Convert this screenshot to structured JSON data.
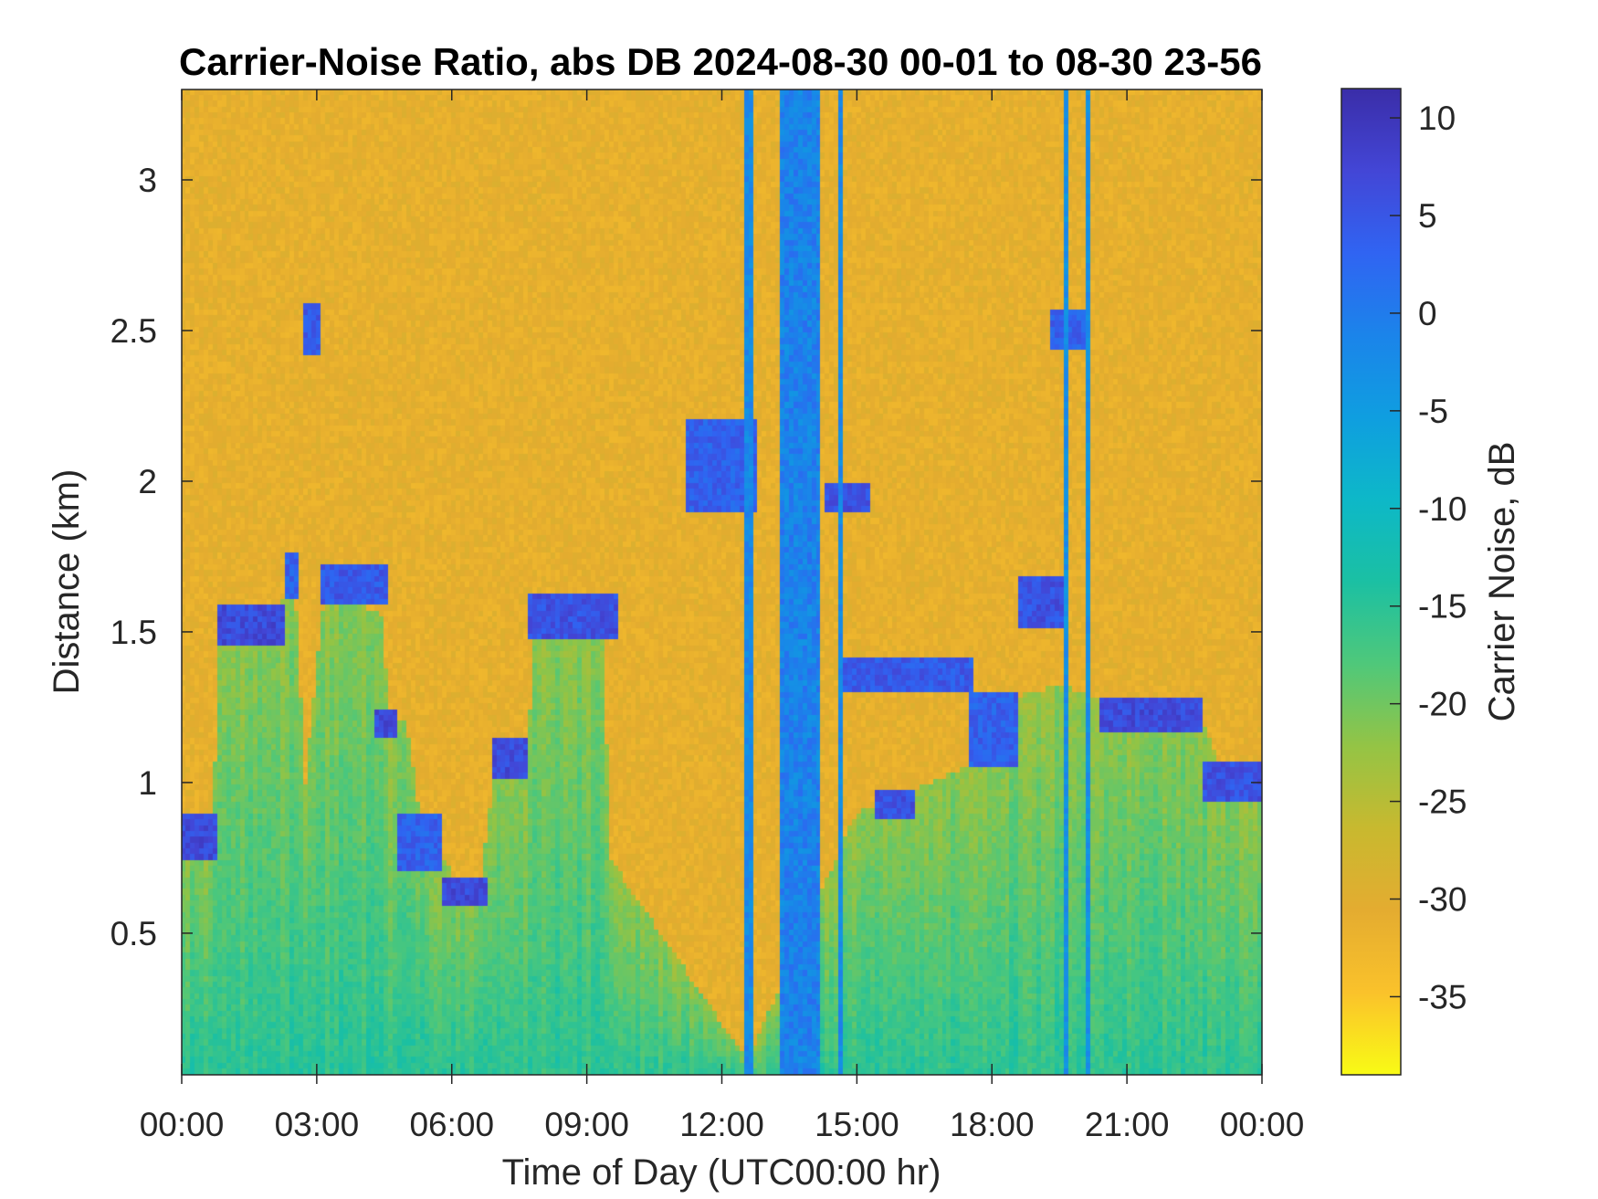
{
  "chart_data": {
    "type": "heatmap",
    "title": "Carrier-Noise Ratio, abs DB 2024-08-30 00-01 to 08-30 23-56",
    "xlabel": "Time of Day (UTC00:00 hr)",
    "ylabel": "Distance (km)",
    "x_unit": "hours",
    "xlim": [
      0,
      24
    ],
    "ylim": [
      0.03,
      3.3
    ],
    "x_ticks": [
      0,
      3,
      6,
      9,
      12,
      15,
      18,
      21,
      24
    ],
    "x_tick_labels": [
      "00:00",
      "03:00",
      "06:00",
      "09:00",
      "12:00",
      "15:00",
      "18:00",
      "21:00",
      "00:00"
    ],
    "y_ticks": [
      0.5,
      1,
      1.5,
      2,
      2.5,
      3
    ],
    "y_tick_labels": [
      "0.5",
      "1",
      "1.5",
      "2",
      "2.5",
      "3"
    ],
    "colorbar": {
      "label": "Carrier Noise, dB",
      "range": [
        -39,
        11.5
      ],
      "ticks": [
        10,
        5,
        0,
        -5,
        -10,
        -15,
        -20,
        -25,
        -30,
        -35
      ],
      "tick_labels": [
        "10",
        "5",
        "0",
        "-5",
        "-10",
        "-15",
        "-20",
        "-25",
        "-30",
        "-35"
      ],
      "colormap": "parula-reversed",
      "colors_low_to_high": [
        "#f9fb15",
        "#fac22b",
        "#e4ac30",
        "#c8b92f",
        "#94c445",
        "#4fc87a",
        "#1bc0a3",
        "#0db8c8",
        "#0f9ee0",
        "#1b84ea",
        "#3064f2",
        "#4346d6",
        "#3a2da8"
      ]
    },
    "background_value": -31,
    "boundary_layer_top_km": [
      {
        "t": 0.0,
        "z": 0.82
      },
      {
        "t": 0.7,
        "z": 0.85
      },
      {
        "t": 0.85,
        "z": 1.5
      },
      {
        "t": 2.2,
        "z": 1.58
      },
      {
        "t": 2.5,
        "z": 1.72
      },
      {
        "t": 2.75,
        "z": 1.0
      },
      {
        "t": 3.2,
        "z": 1.65
      },
      {
        "t": 4.5,
        "z": 1.55
      },
      {
        "t": 4.6,
        "z": 1.2
      },
      {
        "t": 5.0,
        "z": 1.2
      },
      {
        "t": 5.3,
        "z": 0.88
      },
      {
        "t": 6.0,
        "z": 0.7
      },
      {
        "t": 6.6,
        "z": 0.62
      },
      {
        "t": 7.0,
        "z": 1.08
      },
      {
        "t": 7.7,
        "z": 1.08
      },
      {
        "t": 7.85,
        "z": 1.55
      },
      {
        "t": 9.4,
        "z": 1.5
      },
      {
        "t": 9.5,
        "z": 0.75
      },
      {
        "t": 12.0,
        "z": 0.2
      },
      {
        "t": 12.6,
        "z": 0.08
      },
      {
        "t": 15.0,
        "z": 0.9
      },
      {
        "t": 17.5,
        "z": 1.05
      },
      {
        "t": 18.8,
        "z": 1.3
      },
      {
        "t": 19.6,
        "z": 1.32
      },
      {
        "t": 20.0,
        "z": 1.3
      },
      {
        "t": 21.2,
        "z": 1.25
      },
      {
        "t": 22.5,
        "z": 1.28
      },
      {
        "t": 23.2,
        "z": 1.02
      },
      {
        "t": 24.0,
        "z": 1.02
      }
    ],
    "high_return_segments": [
      {
        "t0": 0.0,
        "t1": 0.8,
        "z": 0.82,
        "thickness": 0.07,
        "value": 9
      },
      {
        "t0": 0.8,
        "t1": 2.3,
        "z": 1.52,
        "thickness": 0.06,
        "value": 9
      },
      {
        "t0": 2.3,
        "t1": 2.55,
        "z": 1.68,
        "thickness": 0.08,
        "value": 6
      },
      {
        "t0": 2.7,
        "t1": 3.1,
        "z": 2.5,
        "thickness": 0.08,
        "value": 7
      },
      {
        "t0": 3.1,
        "t1": 4.6,
        "z": 1.65,
        "thickness": 0.07,
        "value": 7
      },
      {
        "t0": 4.3,
        "t1": 4.8,
        "z": 1.2,
        "thickness": 0.05,
        "value": 9
      },
      {
        "t0": 4.8,
        "t1": 5.8,
        "z": 0.8,
        "thickness": 0.1,
        "value": 6
      },
      {
        "t0": 5.8,
        "t1": 6.8,
        "z": 0.64,
        "thickness": 0.05,
        "value": 9
      },
      {
        "t0": 6.9,
        "t1": 7.7,
        "z": 1.08,
        "thickness": 0.07,
        "value": 9
      },
      {
        "t0": 7.7,
        "t1": 9.7,
        "z": 1.55,
        "thickness": 0.07,
        "value": 8
      },
      {
        "t0": 11.2,
        "t1": 12.8,
        "z": 2.05,
        "thickness": 0.15,
        "value": 6
      },
      {
        "t0": 14.3,
        "t1": 15.3,
        "z": 1.95,
        "thickness": 0.05,
        "value": 8
      },
      {
        "t0": 14.7,
        "t1": 17.6,
        "z": 1.35,
        "thickness": 0.06,
        "value": 7
      },
      {
        "t0": 15.4,
        "t1": 16.3,
        "z": 0.93,
        "thickness": 0.05,
        "value": 8
      },
      {
        "t0": 17.5,
        "t1": 18.6,
        "z": 1.17,
        "thickness": 0.12,
        "value": 6
      },
      {
        "t0": 18.6,
        "t1": 19.6,
        "z": 1.6,
        "thickness": 0.08,
        "value": 8
      },
      {
        "t0": 19.3,
        "t1": 20.2,
        "z": 2.5,
        "thickness": 0.06,
        "value": 6
      },
      {
        "t0": 20.4,
        "t1": 22.7,
        "z": 1.22,
        "thickness": 0.06,
        "value": 9
      },
      {
        "t0": 22.7,
        "t1": 24.0,
        "z": 1.0,
        "thickness": 0.06,
        "value": 8
      }
    ],
    "vertical_streaks": [
      {
        "t": 12.6,
        "width_h": 0.12,
        "value": -2
      },
      {
        "t0": 13.3,
        "t1": 14.2,
        "value": -1
      },
      {
        "t": 14.7,
        "width_h": 0.1,
        "value": -2
      },
      {
        "t": 19.6,
        "width_h": 0.1,
        "value": -3
      },
      {
        "t": 20.1,
        "width_h": 0.1,
        "value": -3
      }
    ]
  }
}
